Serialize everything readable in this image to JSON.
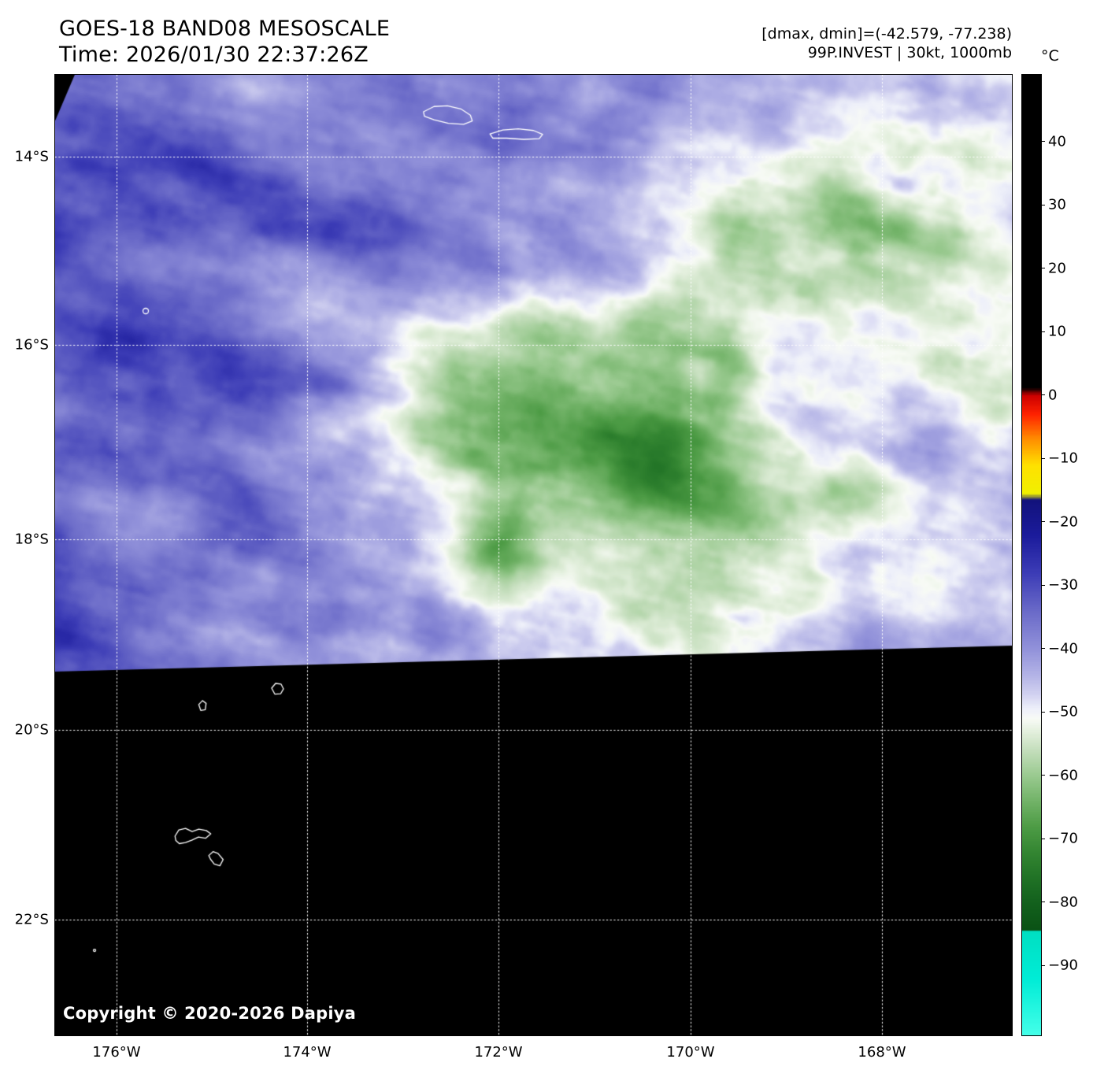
{
  "header": {
    "title": "GOES-18 BAND08 MESOSCALE",
    "time_line": "Time: 2026/01/30 22:37:26Z",
    "dmax_dmin": "[dmax, dmin]=(-42.579, -77.238)",
    "storm_info": "99P.INVEST | 30kt, 1000mb"
  },
  "colorbar": {
    "unit_label": "°C",
    "range_top_c": 50.5,
    "range_bottom_c": -101,
    "ticks": [
      {
        "value": 40,
        "label": "40"
      },
      {
        "value": 30,
        "label": "30"
      },
      {
        "value": 20,
        "label": "20"
      },
      {
        "value": 10,
        "label": "10"
      },
      {
        "value": 0,
        "label": "0"
      },
      {
        "value": -10,
        "label": "−10"
      },
      {
        "value": -20,
        "label": "−20"
      },
      {
        "value": -30,
        "label": "−30"
      },
      {
        "value": -40,
        "label": "−40"
      },
      {
        "value": -50,
        "label": "−50"
      },
      {
        "value": -60,
        "label": "−60"
      },
      {
        "value": -70,
        "label": "−70"
      },
      {
        "value": -80,
        "label": "−80"
      },
      {
        "value": -90,
        "label": "−90"
      }
    ],
    "stops": [
      [
        50.5,
        "#000000"
      ],
      [
        1.2,
        "#000000"
      ],
      [
        0.0,
        "#cc0000"
      ],
      [
        -3.0,
        "#ff2200"
      ],
      [
        -7.0,
        "#ff9000"
      ],
      [
        -11.0,
        "#ffe100"
      ],
      [
        -15.5,
        "#f0f000"
      ],
      [
        -16.5,
        "#12127c"
      ],
      [
        -22.0,
        "#1b1b9b"
      ],
      [
        -28.0,
        "#3c3cb6"
      ],
      [
        -34.0,
        "#6a6ac8"
      ],
      [
        -40.0,
        "#9292da"
      ],
      [
        -44.0,
        "#b2b2e6"
      ],
      [
        -47.0,
        "#d0d0f0"
      ],
      [
        -49.5,
        "#eef0fa"
      ],
      [
        -51.0,
        "#f8fbf6"
      ],
      [
        -53.0,
        "#e4f0de"
      ],
      [
        -56.0,
        "#c4debc"
      ],
      [
        -60.0,
        "#9aca90"
      ],
      [
        -64.0,
        "#72b368"
      ],
      [
        -68.0,
        "#4e9c46"
      ],
      [
        -72.0,
        "#348632"
      ],
      [
        -76.0,
        "#217326"
      ],
      [
        -80.0,
        "#13611d"
      ],
      [
        -84.4,
        "#0a5215"
      ],
      [
        -84.6,
        "#00dfc2"
      ],
      [
        -92.0,
        "#00ecd6"
      ],
      [
        -101.0,
        "#45ffe9"
      ]
    ]
  },
  "map": {
    "copyright": "Copyright © 2020-2026 Dapiya",
    "grid_color": "#ffffff",
    "coastline_color": "#ffffff",
    "nodata_color": "#000000",
    "text_color": "#000000",
    "lat_ticks": [
      {
        "label": "14°S",
        "f": 0.0852
      },
      {
        "label": "16°S",
        "f": 0.2811
      },
      {
        "label": "18°S",
        "f": 0.4836
      },
      {
        "label": "20°S",
        "f": 0.682
      },
      {
        "label": "22°S",
        "f": 0.8795
      }
    ],
    "lon_ticks": [
      {
        "label": "176°W",
        "f": 0.0642
      },
      {
        "label": "174°W",
        "f": 0.2634
      },
      {
        "label": "172°W",
        "f": 0.4634
      },
      {
        "label": "170°W",
        "f": 0.6642
      },
      {
        "label": "168°W",
        "f": 0.8642
      }
    ],
    "scan_cut": {
      "left_f": 0.6213,
      "right_f": 0.5943,
      "corner_wedge": [
        [
          0,
          0
        ],
        [
          0.0205,
          0
        ],
        [
          0,
          0.048
        ]
      ]
    },
    "coastlines": [
      {
        "name": "savaii",
        "closed": true,
        "pts": [
          [
            0.385,
            0.0385
          ],
          [
            0.396,
            0.033
          ],
          [
            0.41,
            0.0322
          ],
          [
            0.424,
            0.0355
          ],
          [
            0.434,
            0.042
          ],
          [
            0.436,
            0.048
          ],
          [
            0.427,
            0.0515
          ],
          [
            0.411,
            0.0505
          ],
          [
            0.396,
            0.0468
          ],
          [
            0.386,
            0.0432
          ]
        ]
      },
      {
        "name": "upolu",
        "closed": true,
        "pts": [
          [
            0.4545,
            0.0615
          ],
          [
            0.468,
            0.0575
          ],
          [
            0.484,
            0.0562
          ],
          [
            0.5,
            0.058
          ],
          [
            0.5095,
            0.062
          ],
          [
            0.506,
            0.0665
          ],
          [
            0.49,
            0.0672
          ],
          [
            0.472,
            0.066
          ],
          [
            0.4575,
            0.066
          ]
        ]
      },
      {
        "name": "islet-ring",
        "circle": [
          0.0947,
          0.2459,
          3.5
        ]
      },
      {
        "name": "islet-a",
        "closed": true,
        "pts": [
          [
            0.2263,
            0.6385
          ],
          [
            0.2304,
            0.6336
          ],
          [
            0.2362,
            0.6344
          ],
          [
            0.2387,
            0.6393
          ],
          [
            0.2358,
            0.6443
          ],
          [
            0.2296,
            0.6447
          ]
        ]
      },
      {
        "name": "islet-b",
        "closed": true,
        "pts": [
          [
            0.1501,
            0.6556
          ],
          [
            0.154,
            0.6515
          ],
          [
            0.1578,
            0.6544
          ],
          [
            0.1569,
            0.661
          ],
          [
            0.1522,
            0.6617
          ]
        ]
      },
      {
        "name": "vanua-levu",
        "closed": true,
        "pts": [
          [
            0.1253,
            0.7926
          ],
          [
            0.1293,
            0.7862
          ],
          [
            0.1363,
            0.7846
          ],
          [
            0.1432,
            0.7878
          ],
          [
            0.1502,
            0.7854
          ],
          [
            0.158,
            0.7868
          ],
          [
            0.1627,
            0.7902
          ],
          [
            0.1572,
            0.7948
          ],
          [
            0.1498,
            0.7936
          ],
          [
            0.1428,
            0.7968
          ],
          [
            0.1362,
            0.7993
          ],
          [
            0.1298,
            0.8004
          ],
          [
            0.1262,
            0.7972
          ]
        ]
      },
      {
        "name": "taveuni",
        "closed": true,
        "pts": [
          [
            0.1606,
            0.8128
          ],
          [
            0.165,
            0.8088
          ],
          [
            0.1702,
            0.8106
          ],
          [
            0.1756,
            0.817
          ],
          [
            0.1722,
            0.8235
          ],
          [
            0.1663,
            0.8216
          ],
          [
            0.1624,
            0.8166
          ]
        ]
      },
      {
        "name": "islet-dot",
        "circle": [
          0.0412,
          0.9115,
          1.5
        ]
      }
    ]
  },
  "imagery": {
    "base_c": -38,
    "west_warm_c": 5,
    "warm_spots": [
      {
        "c": [
          0.05,
          0.08
        ],
        "r": [
          0.16,
          0.13
        ],
        "dc": 3
      }
    ],
    "cold_blobs": [
      {
        "c": [
          0.6,
          0.375
        ],
        "r": [
          0.285,
          0.205
        ],
        "dc": -27
      },
      {
        "c": [
          0.82,
          0.1
        ],
        "r": [
          0.2,
          0.13
        ],
        "dc": -14
      },
      {
        "c": [
          0.98,
          0.3
        ],
        "r": [
          0.13,
          0.22
        ],
        "dc": -12
      },
      {
        "c": [
          0.68,
          0.585
        ],
        "r": [
          0.18,
          0.085
        ],
        "dc": -10
      },
      {
        "c": [
          0.462,
          0.492
        ],
        "r": [
          0.048,
          0.05
        ],
        "dc": -16
      },
      {
        "c": [
          0.615,
          0.395
        ],
        "r": [
          0.06,
          0.05
        ],
        "dc": -9
      },
      {
        "c": [
          0.655,
          0.235
        ],
        "r": [
          0.035,
          0.03
        ],
        "dc": -7
      },
      {
        "c": [
          0.705,
          0.3
        ],
        "r": [
          0.03,
          0.045
        ],
        "dc": -7
      }
    ],
    "noise": {
      "streak_amp": 30,
      "detail_amp": 11,
      "fine_amp": 5,
      "streak_angle": -0.22
    }
  }
}
